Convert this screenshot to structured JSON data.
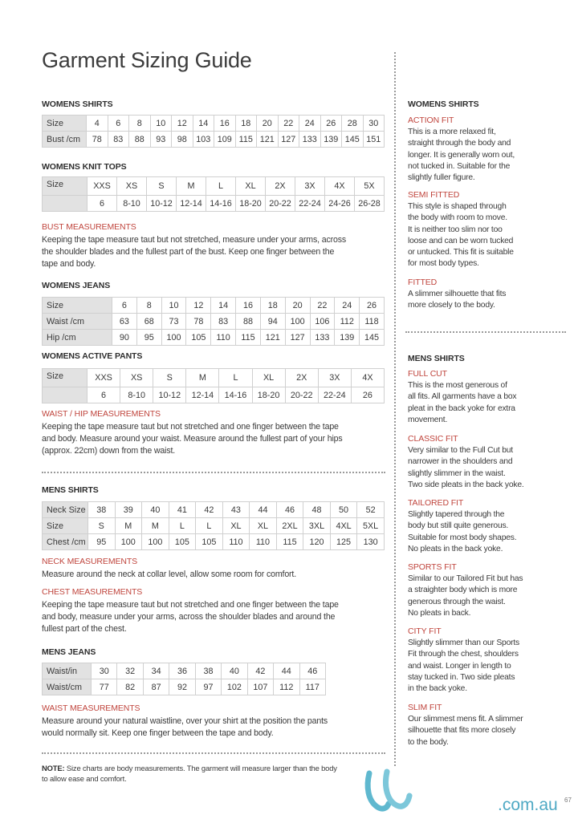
{
  "title": "Garment Sizing Guide",
  "left": {
    "womens_shirts": {
      "heading": "WOMENS SHIRTS",
      "rows": [
        [
          "Size",
          "4",
          "6",
          "8",
          "10",
          "12",
          "14",
          "16",
          "18",
          "20",
          "22",
          "24",
          "26",
          "28",
          "30"
        ],
        [
          "Bust /cm",
          "78",
          "83",
          "88",
          "93",
          "98",
          "103",
          "109",
          "115",
          "121",
          "127",
          "133",
          "139",
          "145",
          "151"
        ]
      ]
    },
    "womens_knit_tops": {
      "heading": "WOMENS KNIT TOPS",
      "rows": [
        [
          "Size",
          "XXS",
          "XS",
          "S",
          "M",
          "L",
          "XL",
          "2X",
          "3X",
          "4X",
          "5X"
        ],
        [
          "",
          "6",
          "8-10",
          "10-12",
          "12-14",
          "14-16",
          "18-20",
          "20-22",
          "22-24",
          "24-26",
          "26-28"
        ]
      ]
    },
    "bust": {
      "heading": "BUST MEASUREMENTS",
      "lines": [
        "Keeping the tape measure taut but not stretched, measure under your arms, across",
        "the shoulder blades and the fullest part of the bust. Keep one finger between the",
        "tape and body."
      ]
    },
    "womens_jeans": {
      "heading": "WOMENS JEANS",
      "rows": [
        [
          "Size",
          "6",
          "8",
          "10",
          "12",
          "14",
          "16",
          "18",
          "20",
          "22",
          "24",
          "26"
        ],
        [
          "Waist /cm",
          "63",
          "68",
          "73",
          "78",
          "83",
          "88",
          "94",
          "100",
          "106",
          "112",
          "118"
        ],
        [
          "Hip /cm",
          "90",
          "95",
          "100",
          "105",
          "110",
          "115",
          "121",
          "127",
          "133",
          "139",
          "145"
        ]
      ]
    },
    "womens_active_pants": {
      "heading": "WOMENS ACTIVE PANTS",
      "rows": [
        [
          "Size",
          "XXS",
          "XS",
          "S",
          "M",
          "L",
          "XL",
          "2X",
          "3X",
          "4X"
        ],
        [
          "",
          "6",
          "8-10",
          "10-12",
          "12-14",
          "14-16",
          "18-20",
          "20-22",
          "22-24",
          "26"
        ]
      ]
    },
    "waist_hip": {
      "heading": "WAIST / HIP MEASUREMENTS",
      "lines": [
        "Keeping the tape measure taut but not stretched and one finger between the tape",
        "and body. Measure around your waist. Measure around the fullest part of your hips",
        "(approx. 22cm) down from the waist."
      ]
    },
    "mens_shirts": {
      "heading": "MENS SHIRTS",
      "rows": [
        [
          "Neck Size",
          "38",
          "39",
          "40",
          "41",
          "42",
          "43",
          "44",
          "46",
          "48",
          "50",
          "52"
        ],
        [
          "Size",
          "S",
          "M",
          "M",
          "L",
          "L",
          "XL",
          "XL",
          "2XL",
          "3XL",
          "4XL",
          "5XL"
        ],
        [
          "Chest /cm",
          "95",
          "100",
          "100",
          "105",
          "105",
          "110",
          "110",
          "115",
          "120",
          "125",
          "130"
        ]
      ]
    },
    "neck": {
      "heading": "NECK MEASUREMENTS",
      "lines": [
        "Measure around the neck at collar level, allow some room for comfort."
      ]
    },
    "chest": {
      "heading": "CHEST MEASUREMENTS",
      "lines": [
        "Keeping the tape measure taut but not stretched and one finger between the tape",
        "and body, measure under your arms, across the shoulder blades and around the",
        "fullest part of the chest."
      ]
    },
    "mens_jeans": {
      "heading": "MENS JEANS",
      "rows": [
        [
          "Waist/in",
          "30",
          "32",
          "34",
          "36",
          "38",
          "40",
          "42",
          "44",
          "46"
        ],
        [
          "Waist/cm",
          "77",
          "82",
          "87",
          "92",
          "97",
          "102",
          "107",
          "112",
          "117"
        ]
      ]
    },
    "waist": {
      "heading": "WAIST MEASUREMENTS",
      "lines": [
        "Measure around your natural waistline, over your shirt at the position the pants",
        "would normally sit. Keep one finger between the tape and body."
      ]
    },
    "note": {
      "label": "NOTE:",
      "lines": [
        " Size charts are body measurements. The garment will measure larger than the body",
        "to allow ease and comfort."
      ]
    }
  },
  "right": {
    "womens_heading": "WOMENS SHIRTS",
    "womens_fits": [
      {
        "name": "ACTION FIT",
        "lines": [
          "This is a more relaxed fit,",
          "straight through the body and",
          "longer. It is generally worn out,",
          "not tucked in. Suitable for the",
          "slightly fuller figure."
        ]
      },
      {
        "name": "SEMI FITTED",
        "lines": [
          "This style is shaped through",
          "the body with room to move.",
          "It is neither too slim nor too",
          "loose and can be worn tucked",
          "or untucked. This fit is suitable",
          "for most body types."
        ]
      },
      {
        "name": "FITTED",
        "lines": [
          "A slimmer silhouette that fits",
          "more closely to the body."
        ]
      }
    ],
    "mens_heading": "MENS SHIRTS",
    "mens_fits": [
      {
        "name": "FULL CUT",
        "lines": [
          "This is the most generous of",
          "all fits. All garments have a box",
          "pleat in the back yoke for extra",
          "movement."
        ]
      },
      {
        "name": "CLASSIC FIT",
        "lines": [
          "Very similar to the Full Cut but",
          "narrower in the shoulders and",
          "slightly slimmer in the waist.",
          "Two side pleats in the back yoke."
        ]
      },
      {
        "name": "TAILORED FIT",
        "lines": [
          "Slightly tapered through the",
          "body but still quite generous.",
          "Suitable for most body shapes.",
          "No pleats in the back yoke."
        ]
      },
      {
        "name": "SPORTS FIT",
        "lines": [
          "Similar to our Tailored Fit but has",
          "a straighter body which is more",
          "generous through the waist.",
          "No pleats in back."
        ]
      },
      {
        "name": "CITY FIT",
        "lines": [
          "Slightly slimmer than our Sports",
          "Fit through the chest, shoulders",
          "and waist. Longer in length to",
          "stay tucked in. Two side pleats",
          "in the back yoke."
        ]
      },
      {
        "name": "SLIM FIT",
        "lines": [
          "Our slimmest mens fit. A slimmer",
          "silhouette that fits more closely",
          "to the body."
        ]
      }
    ]
  },
  "footer": {
    "domain": ".com.au",
    "page_number": "67",
    "logo_color": "#5fb8cf"
  },
  "colors": {
    "accent": "#c0453d",
    "table_label_bg": "#e2e2e2"
  }
}
